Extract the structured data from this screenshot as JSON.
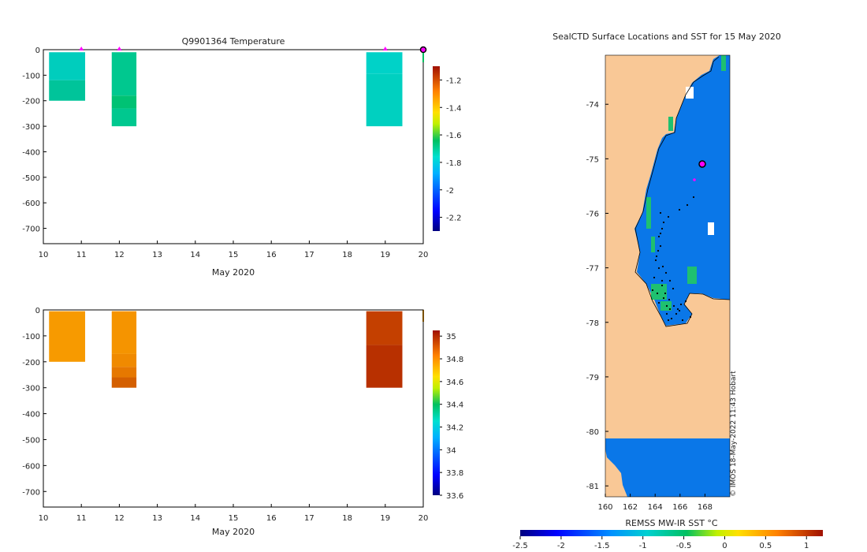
{
  "chart_data": [
    {
      "type": "heatmap",
      "title": "Q9901364  Temperature",
      "xlabel": "May 2020",
      "x_ticks": [
        "10",
        "11",
        "12",
        "13",
        "14",
        "15",
        "16",
        "17",
        "18",
        "19",
        "20"
      ],
      "xlim": [
        10,
        20
      ],
      "ylim": [
        -760,
        0
      ],
      "y_ticks": [
        "0",
        "-100",
        "-200",
        "-300",
        "-400",
        "-500",
        "-600",
        "-700"
      ],
      "profile_markers_day": [
        11,
        12,
        19
      ],
      "current_marker_day": 20,
      "profiles": [
        {
          "day_start": 10.15,
          "day_end": 11.1,
          "bins": [
            {
              "top": -10,
              "bottom": -120,
              "color": "#00cdbd"
            },
            {
              "top": -120,
              "bottom": -200,
              "color": "#00c49a"
            }
          ]
        },
        {
          "day_start": 11.8,
          "day_end": 12.45,
          "bins": [
            {
              "top": -10,
              "bottom": -180,
              "color": "#00c88f"
            },
            {
              "top": -180,
              "bottom": -230,
              "color": "#00c274"
            },
            {
              "top": -230,
              "bottom": -300,
              "color": "#00c88f"
            }
          ]
        },
        {
          "day_start": 18.5,
          "day_end": 19.45,
          "bins": [
            {
              "top": -10,
              "bottom": -95,
              "color": "#00d2c8"
            },
            {
              "top": -95,
              "bottom": -300,
              "color": "#00d0c0"
            }
          ]
        }
      ],
      "colorbar": {
        "min": -2.3,
        "max": -1.1,
        "ticks": [
          "-1.2",
          "-1.4",
          "-1.6",
          "-1.8",
          "-2",
          "-2.2"
        ]
      }
    },
    {
      "type": "heatmap",
      "title": "",
      "xlabel": "May 2020",
      "x_ticks": [
        "10",
        "11",
        "12",
        "13",
        "14",
        "15",
        "16",
        "17",
        "18",
        "19",
        "20"
      ],
      "xlim": [
        10,
        20
      ],
      "ylim": [
        -760,
        0
      ],
      "y_ticks": [
        "0",
        "-100",
        "-200",
        "-300",
        "-400",
        "-500",
        "-600",
        "-700"
      ],
      "profiles": [
        {
          "day_start": 10.15,
          "day_end": 11.1,
          "bins": [
            {
              "top": -5,
              "bottom": -200,
              "color": "#f79a00"
            }
          ]
        },
        {
          "day_start": 11.8,
          "day_end": 12.45,
          "bins": [
            {
              "top": -5,
              "bottom": -170,
              "color": "#f59400"
            },
            {
              "top": -170,
              "bottom": -220,
              "color": "#f08a00"
            },
            {
              "top": -220,
              "bottom": -260,
              "color": "#e67800"
            },
            {
              "top": -260,
              "bottom": -300,
              "color": "#d45f00"
            }
          ]
        },
        {
          "day_start": 18.5,
          "day_end": 19.45,
          "bins": [
            {
              "top": -5,
              "bottom": -135,
              "color": "#c44000"
            },
            {
              "top": -135,
              "bottom": -300,
              "color": "#b83000"
            }
          ]
        }
      ],
      "colorbar": {
        "min": 33.6,
        "max": 35.05,
        "ticks": [
          "35",
          "34.8",
          "34.6",
          "34.4",
          "34.2",
          "34",
          "33.8",
          "33.6"
        ]
      }
    },
    {
      "type": "map",
      "title": "SealCTD Surface Locations and SST for 15 May 2020",
      "lon_range": [
        160,
        170
      ],
      "lat_range": [
        -81.2,
        -73.1
      ],
      "x_ticks": [
        "160",
        "162",
        "164",
        "166",
        "168"
      ],
      "y_ticks": [
        "-74",
        "-75",
        "-76",
        "-77",
        "-78",
        "-79",
        "-80",
        "-81"
      ],
      "current_location": {
        "lon": 168,
        "lat": -75.0
      },
      "colorbar_label": "REMSS MW-IR SST °C",
      "colorbar_ticks": [
        "-2.5",
        "-2",
        "-1.5",
        "-1",
        "-0.5",
        "0",
        "0.5",
        "1"
      ],
      "credit": "© IMOS 18-May-2022 11:43 Hobart",
      "colors": {
        "land": "#f9c896",
        "sst_cold": "#0a77e8",
        "sst_warm": "#1fc070"
      }
    }
  ]
}
